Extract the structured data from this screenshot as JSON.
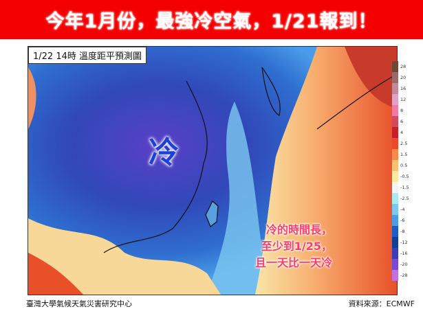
{
  "banner": {
    "headline": "今年1月份，最強冷空氣，1/21報到！"
  },
  "map": {
    "title": "1/22  14時 溫度距平預測圖",
    "cold_label": "冷",
    "note_lines": [
      "冷的時間長，",
      "至少到1/25，",
      "且一天比一天冷"
    ]
  },
  "legend": {
    "labels": [
      "28",
      "20",
      "16",
      "12",
      "8",
      "6",
      "4",
      "2.5",
      "1.5",
      "0.5",
      "-0.5",
      "-1.5",
      "-2.5",
      "-4",
      "-6",
      "-8",
      "-12",
      "-16",
      "-20",
      "-28"
    ],
    "colors": [
      "#6b4a3a",
      "#9a6a6a",
      "#c4889a",
      "#e6a0c8",
      "#f07aa0",
      "#d44a5a",
      "#c81e2a",
      "#e84a2a",
      "#f58a4a",
      "#f8c070",
      "#fbeaa0",
      "#f4f4f4",
      "#a8ecec",
      "#7cc8f0",
      "#4a9ce8",
      "#1e5cc8",
      "#123e98",
      "#3a3eb8",
      "#7a48d8",
      "#c070e0"
    ]
  },
  "footer": {
    "source_left": "臺灣大學氣候天氣災害研究中心",
    "source_right": "資料來源：ECMWF"
  }
}
